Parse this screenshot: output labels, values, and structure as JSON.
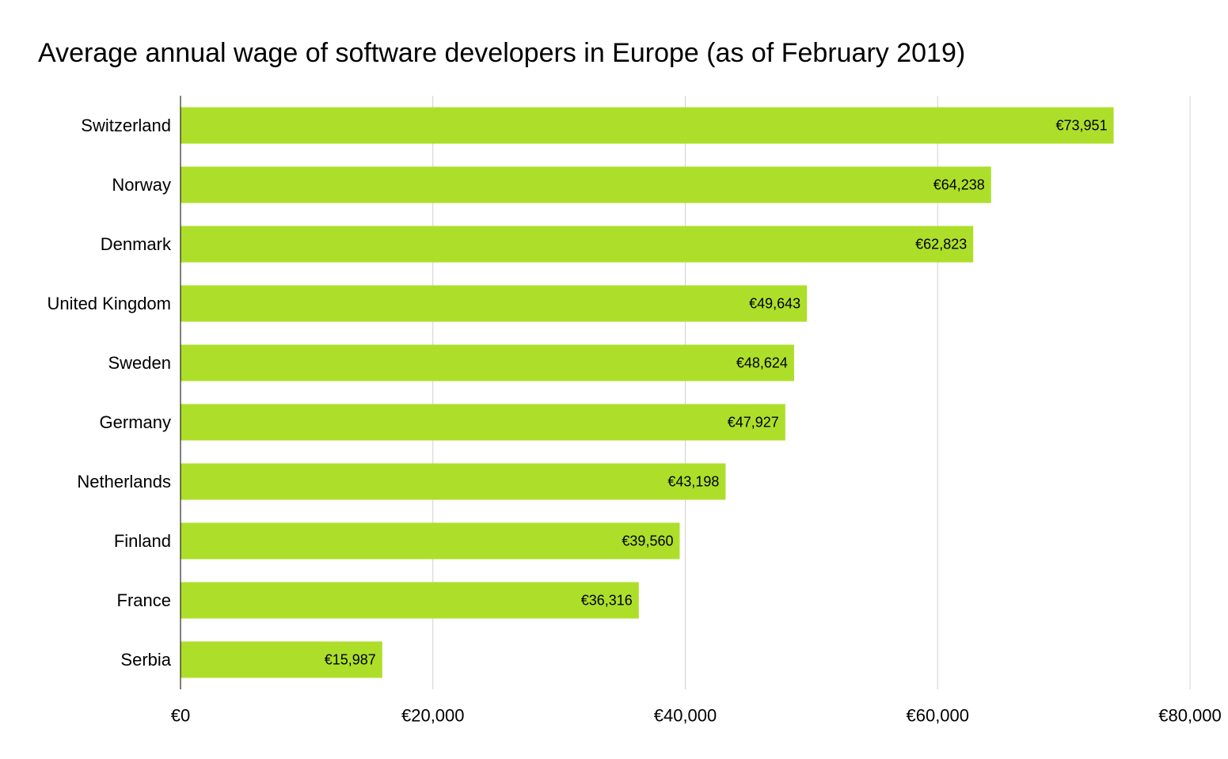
{
  "chart_data": {
    "type": "bar",
    "orientation": "horizontal",
    "title": "Average annual wage of software developers in Europe (as of February 2019)",
    "xlabel": "",
    "ylabel": "",
    "categories": [
      "Switzerland",
      "Norway",
      "Denmark",
      "United Kingdom",
      "Sweden",
      "Germany",
      "Netherlands",
      "Finland",
      "France",
      "Serbia"
    ],
    "values": [
      73951,
      64238,
      62823,
      49643,
      48624,
      47927,
      43198,
      39560,
      36316,
      15987
    ],
    "value_labels": [
      "€73,951",
      "€64,238",
      "€62,823",
      "€49,643",
      "€48,624",
      "€47,927",
      "€43,198",
      "€39,560",
      "€36,316",
      "€15,987"
    ],
    "xlim": [
      0,
      80000
    ],
    "x_ticks": [
      0,
      20000,
      40000,
      60000,
      80000
    ],
    "x_tick_labels": [
      "€0",
      "€20,000",
      "€40,000",
      "€60,000",
      "€80,000"
    ],
    "grid": "vertical",
    "legend": "none",
    "bar_color": "#addf2a",
    "grid_color": "#d0d0d0",
    "axis_color": "#000000"
  }
}
